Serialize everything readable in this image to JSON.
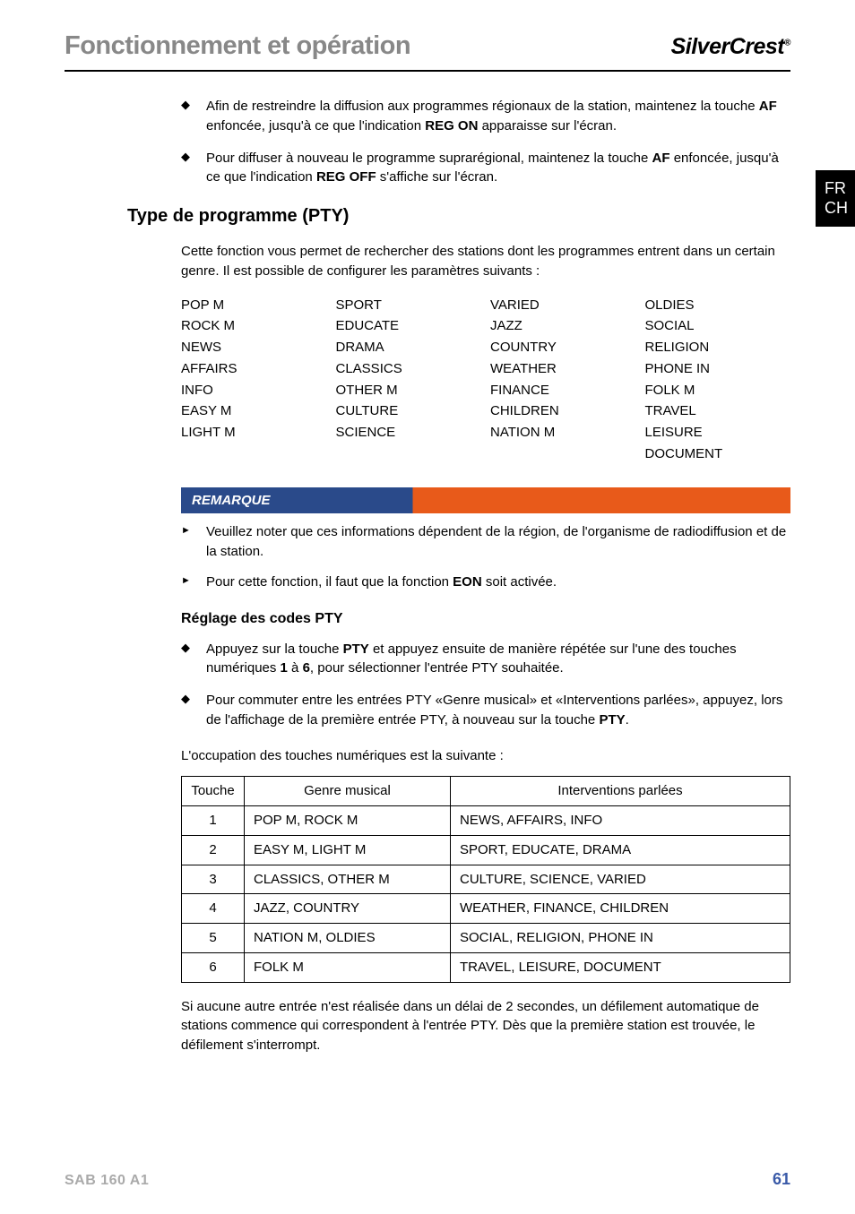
{
  "header": {
    "title": "Fonctionnement et opération",
    "brand_first": "Silver",
    "brand_second": "Crest",
    "brand_mark": "®"
  },
  "side_tab": {
    "line1": "FR",
    "line2": "CH"
  },
  "section1": {
    "bullets": [
      {
        "pre": "Afin de restreindre la diffusion aux programmes régionaux de la station, maintenez la touche ",
        "b1": "AF",
        "mid": " enfoncée, jusqu'à ce que l'indication ",
        "b2": "REG ON",
        "post": " apparaisse sur l'écran."
      },
      {
        "pre": "Pour diffuser à nouveau le programme suprarégional, maintenez la touche ",
        "b1": "AF",
        "mid": " enfoncée, jusqu'à ce que l'indication ",
        "b2": "REG OFF",
        "post": " s'affiche sur l'écran."
      }
    ]
  },
  "pty": {
    "heading": "Type de programme (PTY)",
    "intro": "Cette fonction vous permet de rechercher des stations dont les programmes entrent dans un certain genre. Il est possible de configurer les paramètres suivants :",
    "cols": [
      [
        "POP M",
        "ROCK M",
        "NEWS",
        "AFFAIRS",
        "INFO",
        "EASY M",
        "LIGHT M"
      ],
      [
        "SPORT",
        "EDUCATE",
        "DRAMA",
        "CLASSICS",
        "OTHER M",
        "CULTURE",
        "SCIENCE"
      ],
      [
        "VARIED",
        "JAZZ",
        "COUNTRY",
        "WEATHER",
        "FINANCE",
        "CHILDREN",
        "NATION M"
      ],
      [
        "OLDIES",
        "SOCIAL",
        "RELIGION",
        "PHONE IN",
        "FOLK M",
        "TRAVEL",
        "LEISURE",
        "DOCUMENT"
      ]
    ]
  },
  "remark": {
    "header": "REMARQUE",
    "items": [
      {
        "text": "Veuillez noter que ces informations dépendent de la région, de l'organisme de radiodiffusion et de la station."
      },
      {
        "pre": "Pour cette fonction, il faut que la fonction ",
        "b": "EON",
        "post": " soit activée."
      }
    ]
  },
  "reglage": {
    "heading": "Réglage des codes PTY",
    "bullets": [
      {
        "pre": "Appuyez sur la touche ",
        "b1": "PTY",
        "mid1": " et appuyez ensuite de manière répétée sur l'une des touches numériques ",
        "b2": "1",
        "mid2": " à ",
        "b3": "6",
        "post": ", pour sélectionner l'entrée PTY souhaitée."
      },
      {
        "pre": "Pour commuter entre les entrées PTY «Genre musical» et «Interventions parlées», appuyez, lors de l'affichage de la première entrée PTY, à nouveau sur la touche ",
        "b1": "PTY",
        "post": "."
      }
    ],
    "table_intro": "L'occupation des touches numériques est la suivante :",
    "table": {
      "headers": [
        "Touche",
        "Genre musical",
        "Interventions parlées"
      ],
      "rows": [
        [
          "1",
          "POP M, ROCK M",
          "NEWS, AFFAIRS, INFO"
        ],
        [
          "2",
          "EASY M, LIGHT M",
          "SPORT, EDUCATE, DRAMA"
        ],
        [
          "3",
          "CLASSICS, OTHER M",
          "CULTURE, SCIENCE, VARIED"
        ],
        [
          "4",
          "JAZZ, COUNTRY",
          "WEATHER, FINANCE, CHILDREN"
        ],
        [
          "5",
          "NATION M, OLDIES",
          "SOCIAL, RELIGION, PHONE IN"
        ],
        [
          "6",
          "FOLK M",
          "TRAVEL, LEISURE, DOCUMENT"
        ]
      ]
    },
    "outro": "Si aucune autre entrée n'est réalisée dans un délai de 2 secondes, un défilement automatique de stations commence qui correspondent à l'entrée PTY. Dès que la première station est trouvée, le défilement s'interrompt."
  },
  "footer": {
    "model": "SAB 160 A1",
    "page": "61"
  }
}
